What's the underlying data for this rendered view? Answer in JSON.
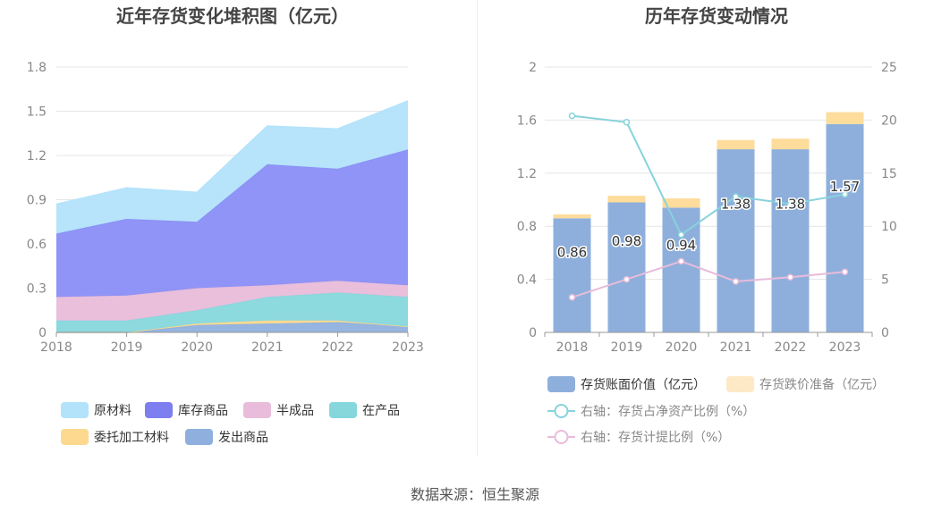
{
  "source_text": "数据来源：恒生聚源",
  "chart_data": [
    {
      "type": "area",
      "stacked": true,
      "title": "近年存货变化堆积图（亿元）",
      "x": [
        "2018",
        "2019",
        "2020",
        "2021",
        "2022",
        "2023"
      ],
      "ylim": [
        0,
        1.8
      ],
      "yticks": [
        "0",
        "0.3",
        "0.6",
        "0.9",
        "1.2",
        "1.5",
        "1.8"
      ],
      "grid": true,
      "legend_position": "bottom",
      "series": [
        {
          "name": "发出商品",
          "values": [
            0.0,
            0.0,
            0.05,
            0.06,
            0.07,
            0.04
          ],
          "color": "#8fb0de"
        },
        {
          "name": "委托加工材料",
          "values": [
            0.0,
            0.0,
            0.01,
            0.02,
            0.01,
            0.0
          ],
          "color": "#fdd98f"
        },
        {
          "name": "在产品",
          "values": [
            0.08,
            0.08,
            0.09,
            0.16,
            0.19,
            0.2
          ],
          "color": "#86d7dc"
        },
        {
          "name": "半成品",
          "values": [
            0.16,
            0.17,
            0.15,
            0.08,
            0.08,
            0.08
          ],
          "color": "#e8bcda"
        },
        {
          "name": "库存商品",
          "values": [
            0.43,
            0.52,
            0.45,
            0.82,
            0.76,
            0.92
          ],
          "color": "#8a8ef5"
        },
        {
          "name": "原材料",
          "values": [
            0.2,
            0.21,
            0.2,
            0.26,
            0.27,
            0.33
          ],
          "color": "#b3e3fb"
        }
      ],
      "legend_order": [
        "原材料",
        "库存商品",
        "半成品",
        "在产品",
        "委托加工材料",
        "发出商品"
      ],
      "legend_colors": [
        "#b3e3fb",
        "#7d7ef0",
        "#e8bcda",
        "#86d7dc",
        "#fdd98f",
        "#8fb0de"
      ]
    },
    {
      "type": "bar",
      "title": "历年存货变动情况",
      "x": [
        "2018",
        "2019",
        "2020",
        "2021",
        "2022",
        "2023"
      ],
      "ylim": [
        0,
        2
      ],
      "yticks": [
        "0",
        "0.4",
        "0.8",
        "1.2",
        "1.6",
        "2"
      ],
      "y2lim": [
        0,
        25
      ],
      "y2ticks": [
        "0",
        "5",
        "10",
        "15",
        "20",
        "25"
      ],
      "grid": true,
      "legend_position": "bottom",
      "bars": [
        {
          "name": "存货账面价值（亿元）",
          "values": [
            0.86,
            0.98,
            0.94,
            1.38,
            1.38,
            1.57
          ],
          "labels": [
            "0.86",
            "0.98",
            "0.94",
            "1.38",
            "1.38",
            "1.57"
          ],
          "color": "#8eafdc"
        },
        {
          "name": "存货跌价准备（亿元）",
          "values": [
            0.03,
            0.05,
            0.07,
            0.07,
            0.08,
            0.09
          ],
          "color": "#fddc9c",
          "legend_color": "#fde9c6"
        }
      ],
      "lines": [
        {
          "name": "右轴：存货占净资产比例（%）",
          "axis": "right",
          "values": [
            20.4,
            19.8,
            9.2,
            12.8,
            12.1,
            13.0
          ],
          "color": "#86d3dc"
        },
        {
          "name": "右轴：存货计提比例（%）",
          "axis": "right",
          "values": [
            3.3,
            5.0,
            6.7,
            4.8,
            5.2,
            5.7
          ],
          "color": "#e8bcda"
        }
      ]
    }
  ]
}
